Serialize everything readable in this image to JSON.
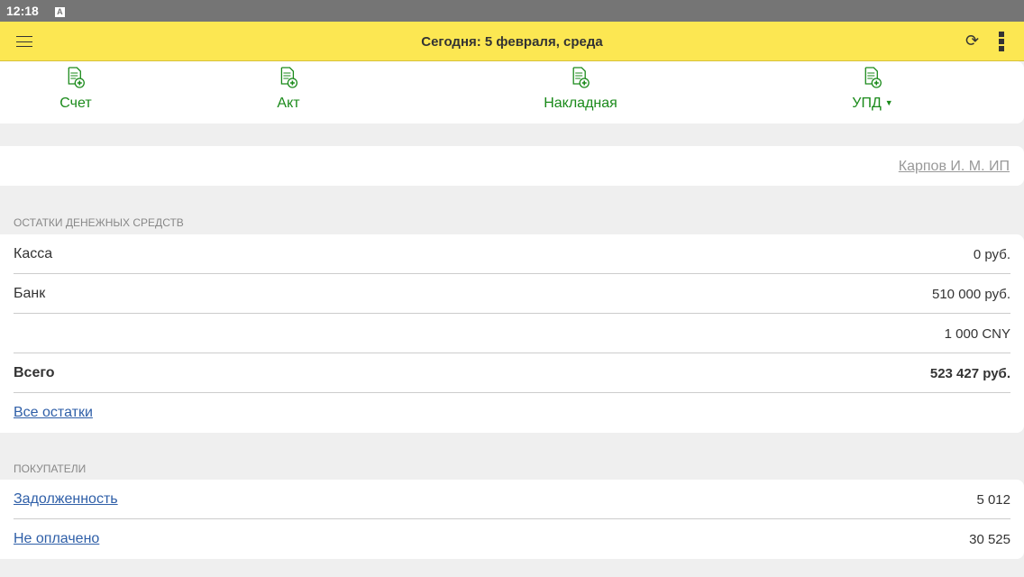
{
  "status_bar": {
    "time": "12:18",
    "notification_icon": "A"
  },
  "header": {
    "title": "Сегодня: 5 февраля, среда",
    "menu_icon": "hamburger-icon",
    "sync_icon": "sync-icon",
    "more_icon": "more-vertical-icon"
  },
  "documents": [
    {
      "label": "Счет"
    },
    {
      "label": "Акт"
    },
    {
      "label": "Накладная"
    },
    {
      "label": "УПД",
      "dropdown": true
    }
  ],
  "organization": "Карпов И. М. ИП",
  "cash": {
    "section_title": "ОСТАТКИ ДЕНЕЖНЫХ СРЕДСТВ",
    "rows": [
      {
        "label": "Касса",
        "value": "0 руб."
      },
      {
        "label": "Банк",
        "value": "510 000 руб."
      },
      {
        "label": "",
        "value": "1 000 CNY"
      },
      {
        "label": "Всего",
        "value": "523 427 руб."
      }
    ],
    "all_link": "Все остатки"
  },
  "buyers": {
    "section_title": "ПОКУПАТЕЛИ",
    "rows": [
      {
        "label": "Задолженность",
        "value": "5 012"
      },
      {
        "label": "Не оплачено",
        "value": "30 525"
      }
    ]
  },
  "colors": {
    "header": "#fce752",
    "accent_green": "#1a8a1a",
    "link": "#2f5fa8"
  }
}
